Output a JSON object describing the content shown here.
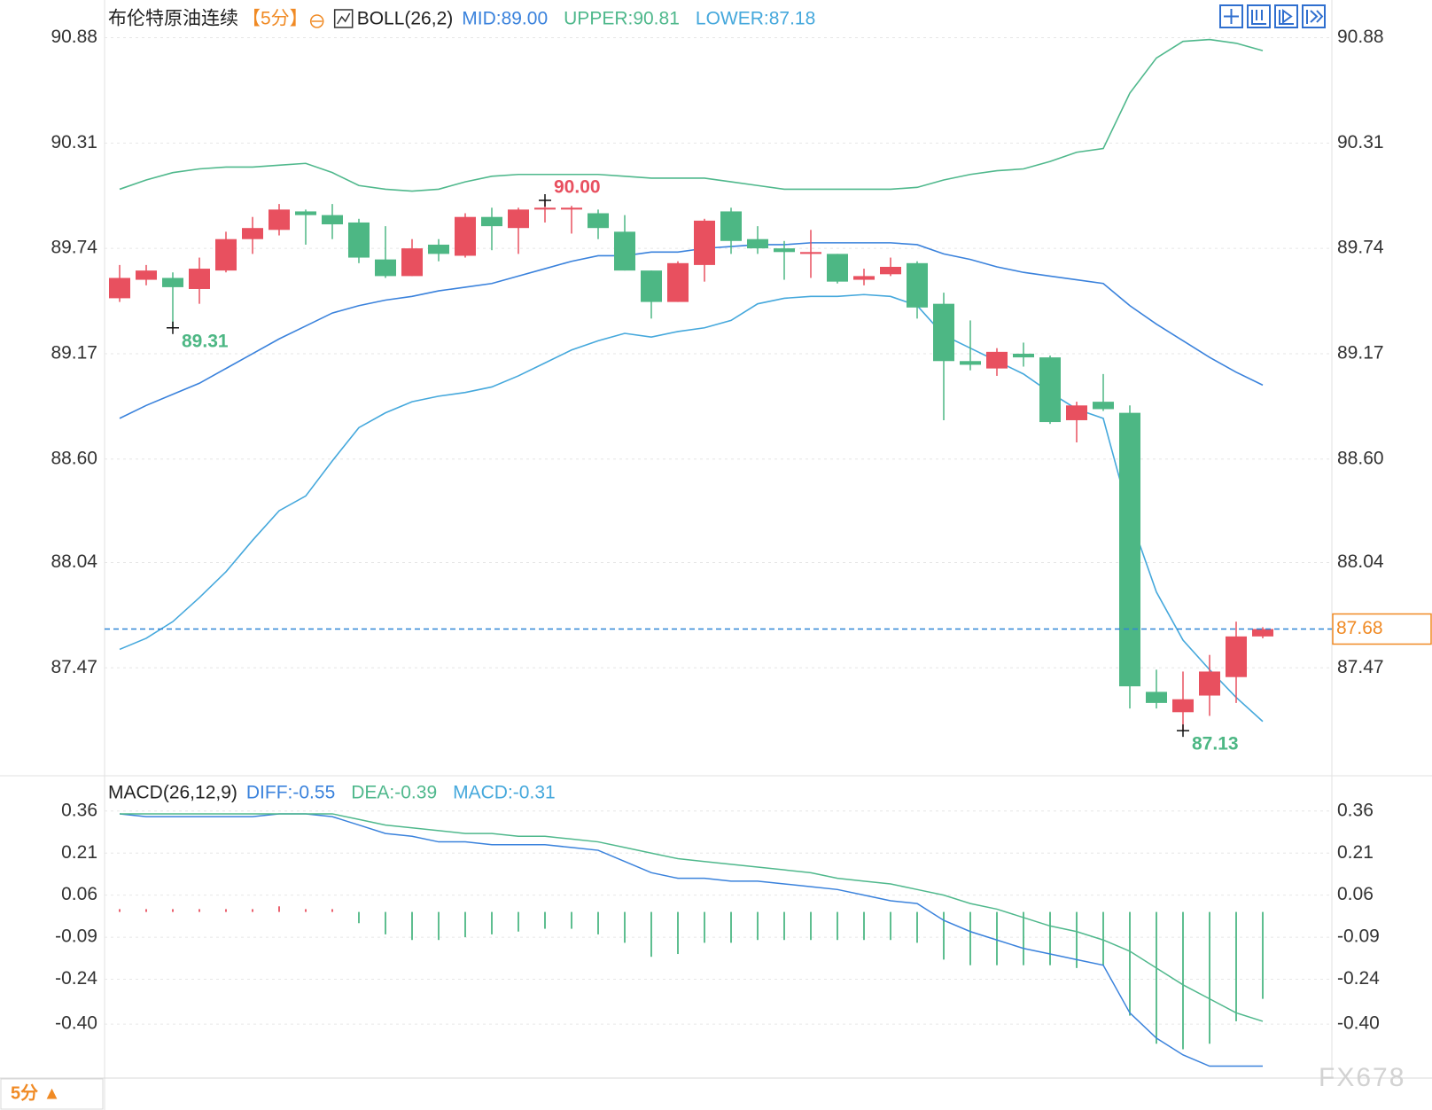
{
  "chart_data": [
    {
      "type": "candlestick",
      "title": "布伦特原油连续",
      "period": "【5分】",
      "indicator": "BOLL(26,2)",
      "open": [
        89.47,
        89.57,
        89.58,
        89.52,
        89.62,
        89.79,
        89.84,
        89.94,
        89.92,
        89.88,
        89.68,
        89.59,
        89.76,
        89.7,
        89.91,
        89.85,
        89.95,
        89.95,
        89.93,
        89.83,
        89.62,
        89.45,
        89.65,
        89.94,
        89.79,
        89.74,
        89.71,
        89.71,
        89.57,
        89.6,
        89.66,
        89.44,
        89.13,
        89.09,
        89.17,
        89.15,
        88.81,
        88.91,
        88.85,
        87.34,
        87.23,
        87.32,
        87.42,
        87.64
      ],
      "high": [
        89.65,
        89.65,
        89.61,
        89.69,
        89.83,
        89.91,
        89.98,
        89.95,
        89.98,
        89.9,
        89.86,
        89.79,
        89.79,
        89.93,
        89.96,
        89.96,
        90.0,
        89.97,
        89.95,
        89.92,
        89.62,
        89.67,
        89.9,
        89.96,
        89.86,
        89.78,
        89.84,
        89.71,
        89.63,
        89.69,
        89.67,
        89.5,
        89.35,
        89.2,
        89.23,
        89.16,
        88.91,
        89.06,
        88.89,
        87.46,
        87.45,
        87.54,
        87.72,
        87.69
      ],
      "low": [
        89.45,
        89.54,
        89.31,
        89.44,
        89.61,
        89.71,
        89.81,
        89.76,
        89.79,
        89.66,
        89.58,
        89.59,
        89.67,
        89.69,
        89.73,
        89.71,
        89.88,
        89.82,
        89.79,
        89.62,
        89.36,
        89.45,
        89.56,
        89.71,
        89.71,
        89.57,
        89.58,
        89.55,
        89.54,
        89.59,
        89.36,
        88.81,
        89.08,
        89.05,
        89.1,
        88.79,
        88.69,
        88.86,
        87.25,
        87.25,
        87.13,
        87.21,
        87.28,
        87.63
      ],
      "close": [
        89.58,
        89.62,
        89.53,
        89.63,
        89.79,
        89.85,
        89.95,
        89.92,
        89.87,
        89.69,
        89.59,
        89.74,
        89.71,
        89.91,
        89.86,
        89.95,
        89.96,
        89.96,
        89.85,
        89.62,
        89.45,
        89.66,
        89.89,
        89.78,
        89.74,
        89.72,
        89.72,
        89.56,
        89.59,
        89.64,
        89.42,
        89.13,
        89.11,
        89.18,
        89.15,
        88.8,
        88.89,
        88.87,
        87.37,
        87.28,
        87.3,
        87.45,
        87.64,
        87.68
      ],
      "up_color": "#e8505f",
      "down_color": "#4db784",
      "series": [
        {
          "name": "MID:89.00",
          "color": "#3a82dc",
          "values": [
            88.82,
            88.89,
            88.95,
            89.01,
            89.09,
            89.17,
            89.25,
            89.32,
            89.39,
            89.43,
            89.46,
            89.48,
            89.51,
            89.53,
            89.55,
            89.59,
            89.63,
            89.67,
            89.7,
            89.7,
            89.72,
            89.72,
            89.74,
            89.75,
            89.76,
            89.76,
            89.77,
            89.77,
            89.77,
            89.77,
            89.76,
            89.71,
            89.68,
            89.64,
            89.61,
            89.59,
            89.57,
            89.55,
            89.43,
            89.33,
            89.24,
            89.15,
            89.07,
            89.0
          ]
        },
        {
          "name": "UPPER:90.81",
          "color": "#4fb88c",
          "values": [
            90.06,
            90.11,
            90.15,
            90.17,
            90.18,
            90.18,
            90.19,
            90.2,
            90.15,
            90.08,
            90.06,
            90.05,
            90.06,
            90.1,
            90.13,
            90.14,
            90.14,
            90.14,
            90.14,
            90.13,
            90.12,
            90.12,
            90.12,
            90.1,
            90.08,
            90.06,
            90.06,
            90.06,
            90.06,
            90.06,
            90.07,
            90.11,
            90.14,
            90.16,
            90.17,
            90.21,
            90.26,
            90.28,
            90.58,
            90.77,
            90.86,
            90.87,
            90.85,
            90.81
          ]
        },
        {
          "name": "LOWER:87.18",
          "color": "#45a8dc",
          "values": [
            87.57,
            87.63,
            87.72,
            87.85,
            87.99,
            88.16,
            88.32,
            88.4,
            88.59,
            88.77,
            88.85,
            88.91,
            88.94,
            88.96,
            88.99,
            89.05,
            89.12,
            89.19,
            89.24,
            89.28,
            89.26,
            89.29,
            89.31,
            89.35,
            89.44,
            89.47,
            89.48,
            89.48,
            89.49,
            89.48,
            89.43,
            89.27,
            89.2,
            89.13,
            89.06,
            88.96,
            88.87,
            88.82,
            88.29,
            87.88,
            87.62,
            87.46,
            87.31,
            87.18
          ]
        }
      ],
      "ylim": [
        86.91,
        91.06
      ],
      "yticks": [
        90.88,
        90.31,
        89.74,
        89.17,
        {
          "value": 88.6,
          "label": "88.60"
        },
        88.04,
        87.47
      ],
      "grid": true,
      "last_price": 87.68,
      "last_price_color": "#f08a24",
      "annotations": [
        {
          "value": 90,
          "label": "90.00",
          "color": "#e8505f"
        },
        {
          "value": 89.31,
          "color": "#4db784"
        },
        {
          "value": 87.13,
          "color": "#4db784"
        }
      ]
    },
    {
      "type": "macd",
      "title": "MACD(26,12,9)",
      "series": [
        {
          "name": "DIFF:-0.55",
          "color": "#3a82dc",
          "values": [
            0.35,
            0.34,
            0.34,
            0.34,
            0.34,
            0.34,
            0.35,
            0.35,
            0.34,
            0.31,
            0.28,
            0.27,
            0.25,
            0.25,
            0.24,
            0.24,
            0.24,
            0.23,
            0.22,
            0.18,
            0.14,
            0.12,
            0.12,
            0.11,
            0.11,
            0.1,
            0.09,
            0.08,
            0.06,
            0.04,
            0.03,
            -0.03,
            -0.07,
            -0.1,
            -0.13,
            -0.15,
            -0.17,
            -0.19,
            -0.36,
            -0.45,
            -0.51,
            -0.55,
            -0.55,
            -0.55
          ]
        },
        {
          "name": "DEA:-0.39",
          "color": "#4fb88c",
          "values": [
            0.35,
            0.35,
            0.35,
            0.35,
            0.35,
            0.35,
            0.35,
            0.35,
            0.35,
            0.33,
            0.31,
            0.3,
            0.29,
            0.28,
            0.28,
            0.27,
            0.27,
            0.26,
            0.25,
            0.23,
            0.21,
            0.19,
            0.18,
            0.17,
            0.16,
            0.15,
            0.14,
            0.12,
            0.11,
            0.1,
            0.08,
            0.06,
            0.03,
            0.01,
            -0.02,
            -0.05,
            -0.07,
            -0.1,
            -0.14,
            -0.2,
            -0.26,
            -0.31,
            -0.36,
            -0.39
          ]
        }
      ],
      "histogram": {
        "name": "MACD:-0.31",
        "color": "#45a8dc",
        "values": [
          0.01,
          0.01,
          0.01,
          0.01,
          0.01,
          0.01,
          0.02,
          0.01,
          0.01,
          -0.04,
          -0.08,
          -0.1,
          -0.1,
          -0.09,
          -0.08,
          -0.07,
          -0.06,
          -0.06,
          -0.08,
          -0.11,
          -0.16,
          -0.15,
          -0.11,
          -0.11,
          -0.1,
          -0.1,
          -0.1,
          -0.1,
          -0.1,
          -0.1,
          -0.11,
          -0.17,
          -0.19,
          -0.19,
          -0.19,
          -0.19,
          -0.2,
          -0.19,
          -0.37,
          -0.47,
          -0.49,
          -0.47,
          -0.39,
          -0.31
        ]
      },
      "up_color": "#e8505f",
      "down_color": "#4db784",
      "ylim": [
        -0.58,
        0.47
      ],
      "yticks": [
        0.36,
        0.21,
        0.06,
        -0.09,
        -0.24,
        {
          "value": -0.4,
          "label": "-0.40"
        }
      ],
      "grid": true
    }
  ],
  "ui": {
    "period_button": "5分 ▲",
    "watermark": "FX678"
  }
}
